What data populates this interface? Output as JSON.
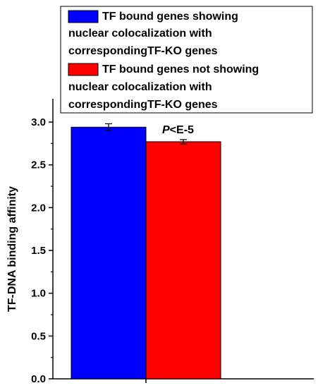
{
  "chart_data": {
    "type": "bar",
    "title": "",
    "xlabel": "",
    "ylabel": "TF-DNA binding affinity",
    "ylim": [
      0.0,
      3.0
    ],
    "yticks": [
      "0.0",
      "0.5",
      "1.0",
      "1.5",
      "2.0",
      "2.5",
      "3.0"
    ],
    "series": [
      {
        "name": "TF bound genes showing nuclear colocalization with correspondingTF-KO genes",
        "legend_lines": [
          "TF bound genes showing",
          "nuclear colocalization with",
          "correspondingTF-KO genes"
        ],
        "value": 2.94,
        "error": 0.04,
        "color": "#0000ff"
      },
      {
        "name": "TF bound genes not showing nuclear colocalization with correspondingTF-KO genes",
        "legend_lines": [
          "TF bound genes not showing",
          "nuclear colocalization with",
          "correspondingTF-KO genes"
        ],
        "value": 2.77,
        "error": 0.025,
        "color": "#ff0000"
      }
    ],
    "annotation": {
      "italic": "P",
      "rest": "<E-5"
    },
    "legend_position": "top",
    "grid": false
  }
}
